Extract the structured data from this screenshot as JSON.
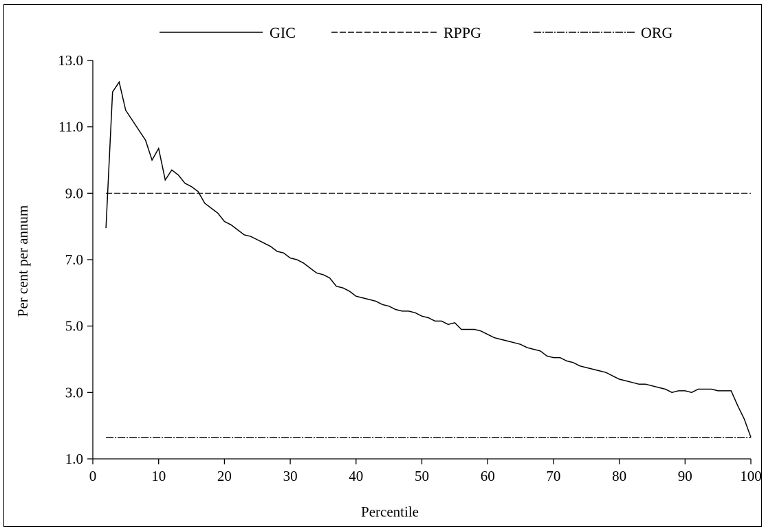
{
  "chart_data": {
    "type": "line",
    "title": "",
    "xlabel": "Percentile",
    "ylabel": "Per cent per annum",
    "xlim": [
      0,
      100
    ],
    "ylim": [
      1.0,
      13.0
    ],
    "x_ticks": [
      0,
      10,
      20,
      30,
      40,
      50,
      60,
      70,
      80,
      90,
      100
    ],
    "x_tick_labels": [
      "0",
      "10",
      "20",
      "30",
      "40",
      "50",
      "60",
      "70",
      "80",
      "90",
      "100"
    ],
    "y_ticks": [
      1.0,
      3.0,
      5.0,
      7.0,
      9.0,
      11.0,
      13.0
    ],
    "y_tick_labels": [
      "1.0",
      "3.0",
      "5.0",
      "7.0",
      "9.0",
      "11.0",
      "13.0"
    ],
    "grid": false,
    "legend_position": "top",
    "series": [
      {
        "name": "GIC",
        "style": "solid",
        "color": "#000000",
        "x": [
          2,
          3,
          4,
          5,
          6,
          7,
          8,
          9,
          10,
          11,
          12,
          13,
          14,
          15,
          16,
          17,
          18,
          19,
          20,
          21,
          22,
          23,
          24,
          25,
          26,
          27,
          28,
          29,
          30,
          31,
          32,
          33,
          34,
          35,
          36,
          37,
          38,
          39,
          40,
          41,
          42,
          43,
          44,
          45,
          46,
          47,
          48,
          49,
          50,
          51,
          52,
          53,
          54,
          55,
          56,
          57,
          58,
          59,
          60,
          61,
          62,
          63,
          64,
          65,
          66,
          67,
          68,
          69,
          70,
          71,
          72,
          73,
          74,
          75,
          76,
          77,
          78,
          79,
          80,
          81,
          82,
          83,
          84,
          85,
          86,
          87,
          88,
          89,
          90,
          91,
          92,
          93,
          94,
          95,
          96,
          97,
          98,
          99,
          100
        ],
        "values": [
          7.95,
          12.05,
          12.35,
          11.5,
          11.2,
          10.9,
          10.6,
          10.0,
          10.35,
          9.4,
          9.7,
          9.55,
          9.3,
          9.2,
          9.05,
          8.7,
          8.55,
          8.4,
          8.15,
          8.05,
          7.9,
          7.75,
          7.7,
          7.6,
          7.5,
          7.4,
          7.25,
          7.2,
          7.05,
          7.0,
          6.9,
          6.75,
          6.6,
          6.55,
          6.45,
          6.2,
          6.15,
          6.05,
          5.9,
          5.85,
          5.8,
          5.75,
          5.65,
          5.6,
          5.5,
          5.45,
          5.45,
          5.4,
          5.3,
          5.25,
          5.15,
          5.15,
          5.05,
          5.1,
          4.9,
          4.9,
          4.9,
          4.85,
          4.75,
          4.65,
          4.6,
          4.55,
          4.5,
          4.45,
          4.35,
          4.3,
          4.25,
          4.1,
          4.05,
          4.05,
          3.95,
          3.9,
          3.8,
          3.75,
          3.7,
          3.65,
          3.6,
          3.5,
          3.4,
          3.35,
          3.3,
          3.25,
          3.25,
          3.2,
          3.15,
          3.1,
          3.0,
          3.05,
          3.05,
          3.0,
          3.1,
          3.1,
          3.1,
          3.05,
          3.05,
          3.05,
          2.6,
          2.2,
          1.65
        ]
      },
      {
        "name": "RPPG",
        "style": "dashed",
        "color": "#000000",
        "x": [
          2,
          100
        ],
        "values": [
          9.0,
          9.0
        ]
      },
      {
        "name": "ORG",
        "style": "dash-dot",
        "color": "#000000",
        "x": [
          2,
          100
        ],
        "values": [
          1.65,
          1.65
        ]
      }
    ]
  }
}
